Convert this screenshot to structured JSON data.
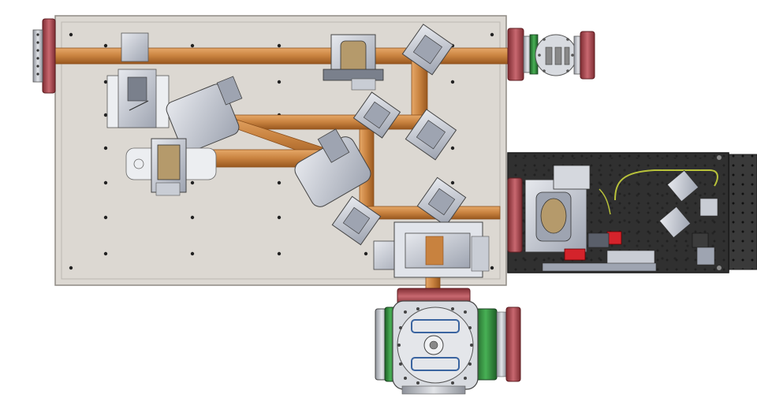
{
  "colors": {
    "background": "#ffffff",
    "breadboard": "#dcd8d2",
    "breadboard_edge": "#8f8a84",
    "beam_pipe": "#c8823f",
    "beam_pipe_dark": "#9a5a24",
    "beam_pipe_light": "#e2a566",
    "flange_red": "#b8545a",
    "flange_red_dark": "#7e2c32",
    "flange_green": "#2e8b3a",
    "flange_red_bright": "#d4232b",
    "mount_gray": "#b9bec9",
    "mount_dark": "#5a5f6a",
    "table_black": "#2a2a2a",
    "table_dark": "#444444",
    "cable_yellow": "#b8c23a"
  },
  "icons": {
    "left_flange": "vacuum-flange-icon",
    "right_flange": "vacuum-flange-icon",
    "valve": "gate-valve-icon",
    "chamber": "vacuum-chamber-icon"
  }
}
